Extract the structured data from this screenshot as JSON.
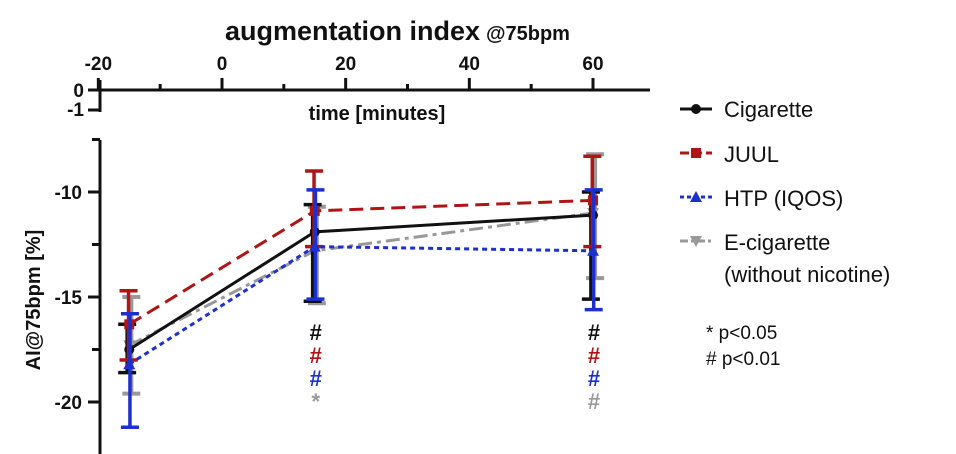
{
  "chart_data": {
    "type": "line",
    "title": "augmentation index",
    "title_suffix": "@75bpm",
    "xlabel": "time [minutes]",
    "ylabel": "AI@75bpm [%]",
    "x_ticks": [
      "-20",
      "0",
      "20",
      "40",
      "60"
    ],
    "top_axis_y_ticks": [
      "0",
      "-1"
    ],
    "y_ticks": [
      "-10",
      "-15",
      "-20"
    ],
    "xlim": [
      -20,
      70
    ],
    "ylim": [
      -22.5,
      -7.5
    ],
    "x": [
      -15,
      15,
      60
    ],
    "series": [
      {
        "name": "Cigarette",
        "color": "#111111",
        "marker": "circle",
        "dash": "solid",
        "values": [
          -17.5,
          -11.9,
          -11.1
        ],
        "err_low": [
          -18.6,
          -15.2,
          -15.1
        ],
        "err_high": [
          -16.3,
          -10.6,
          -10.0
        ],
        "annotations": [
          "",
          "#",
          "#"
        ]
      },
      {
        "name": "JUUL",
        "color": "#b01515",
        "marker": "square",
        "dash": "dashed",
        "values": [
          -16.3,
          -10.9,
          -10.4
        ],
        "err_low": [
          -18.0,
          -12.6,
          -12.6
        ],
        "err_high": [
          -14.7,
          -9.0,
          -8.3
        ],
        "annotations": [
          "",
          "#",
          "#"
        ]
      },
      {
        "name": "HTP (IQOS)",
        "color": "#1c2fd0",
        "marker": "triangle-up",
        "dash": "dotted",
        "values": [
          -18.2,
          -12.6,
          -12.8
        ],
        "err_low": [
          -21.2,
          -15.1,
          -15.6
        ],
        "err_high": [
          -15.8,
          -9.9,
          -9.9
        ],
        "annotations": [
          "",
          "#",
          "#"
        ]
      },
      {
        "name": "E-cigarette (without nicotine)",
        "color": "#999999",
        "marker": "triangle-down",
        "dash": "dashdot",
        "values": [
          -17.3,
          -12.8,
          -11.0
        ],
        "err_low": [
          -19.6,
          -15.3,
          -14.1
        ],
        "err_high": [
          -15.0,
          -10.7,
          -8.2
        ],
        "annotations": [
          "",
          "*",
          "#"
        ]
      }
    ],
    "legend": {
      "placement": "right",
      "entries": [
        "Cigarette",
        "JUUL",
        "HTP (IQOS)",
        "E-cigarette",
        "(without nicotine)"
      ]
    },
    "notes": [
      "* p<0.05",
      "# p<0.01"
    ]
  }
}
